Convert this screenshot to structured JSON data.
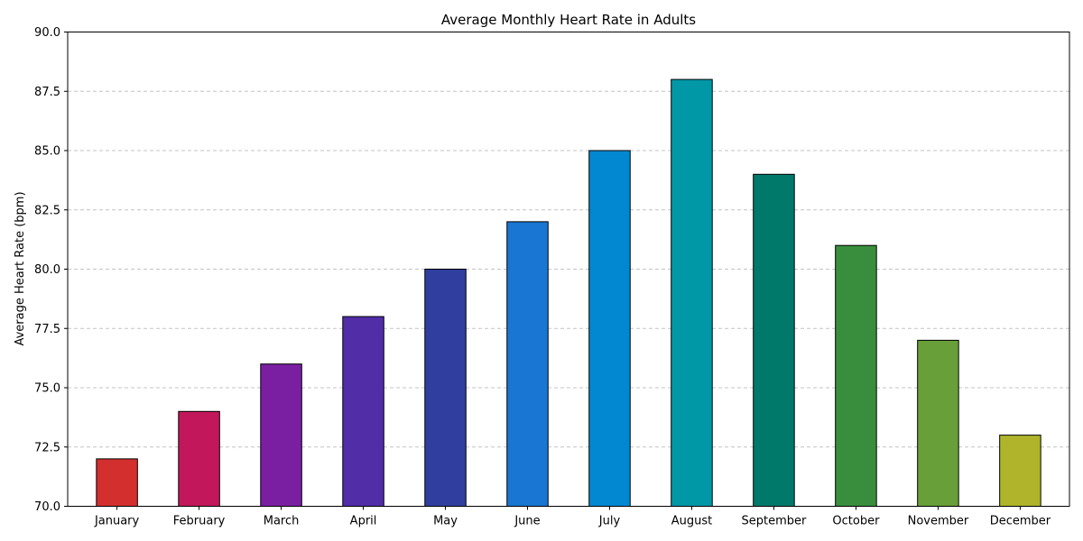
{
  "chart_data": {
    "type": "bar",
    "title": "Average Monthly Heart Rate in Adults",
    "xlabel": "",
    "ylabel": "Average Heart Rate (bpm)",
    "ylim": [
      70,
      90
    ],
    "yticks": [
      "70.0",
      "72.5",
      "75.0",
      "77.5",
      "80.0",
      "82.5",
      "85.0",
      "87.5",
      "90.0"
    ],
    "grid": "y-dashed",
    "categories": [
      "January",
      "February",
      "March",
      "April",
      "May",
      "June",
      "July",
      "August",
      "September",
      "October",
      "November",
      "December"
    ],
    "values": [
      72,
      74,
      76,
      78,
      80,
      82,
      85,
      88,
      84,
      81,
      77,
      73
    ],
    "colors": [
      "#d32f2f",
      "#c2185b",
      "#7b1fa2",
      "#512da8",
      "#303f9f",
      "#1976d2",
      "#0288d1",
      "#0097a7",
      "#00796b",
      "#388e3c",
      "#689f38",
      "#afb42b"
    ]
  }
}
